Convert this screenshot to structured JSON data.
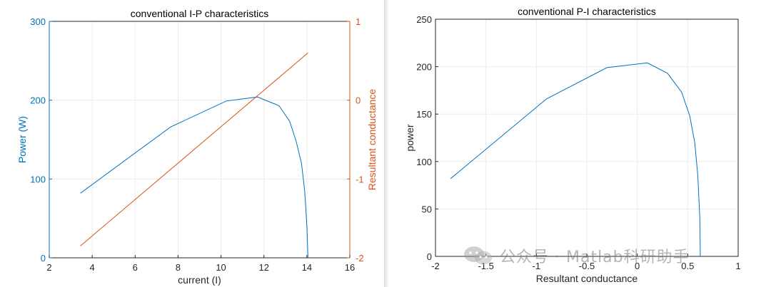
{
  "chart_data": [
    {
      "type": "line",
      "title": "conventional I-P characteristics",
      "xlabel": "current (I)",
      "ylabel": "Power (W)",
      "ylabel_right": "Resultant conductance",
      "xlim": [
        2,
        16
      ],
      "ylim": [
        0,
        300
      ],
      "ylim_right": [
        -2,
        1
      ],
      "xticks": [
        "2",
        "4",
        "6",
        "8",
        "10",
        "12",
        "14",
        "16"
      ],
      "yticks": [
        "0",
        "100",
        "200",
        "300"
      ],
      "yticks_right": [
        "-2",
        "-1",
        "0",
        "1"
      ],
      "grid": true,
      "colors": {
        "left_axis": "#0072BD",
        "right_axis": "#D95319"
      },
      "series": [
        {
          "axis": "left",
          "color": "#0072BD",
          "x": [
            3.45,
            7.65,
            10.25,
            11.7,
            12.7,
            13.2,
            13.5,
            13.75,
            13.9,
            14.0,
            14.05
          ],
          "y": [
            82,
            166,
            199,
            204,
            193,
            173,
            148,
            120,
            85,
            40,
            0
          ]
        },
        {
          "axis": "right",
          "color": "#D95319",
          "x": [
            3.45,
            14.05
          ],
          "y": [
            -1.85,
            0.6
          ]
        }
      ]
    },
    {
      "type": "line",
      "title": "conventional P-I characteristics",
      "xlabel": "Resultant conductance",
      "ylabel": "power",
      "xlim": [
        -2,
        1
      ],
      "ylim": [
        0,
        250
      ],
      "xticks": [
        "-2",
        "-1.5",
        "-1",
        "-0.5",
        "0",
        "0.5",
        "1"
      ],
      "yticks": [
        "0",
        "50",
        "100",
        "150",
        "200",
        "250"
      ],
      "grid": true,
      "series": [
        {
          "color": "#0072BD",
          "x": [
            -1.85,
            -0.9,
            -0.3,
            0.1,
            0.3,
            0.44,
            0.52,
            0.57,
            0.6,
            0.62,
            0.625
          ],
          "y": [
            82,
            166,
            199,
            204,
            193,
            173,
            148,
            120,
            85,
            40,
            0
          ]
        }
      ]
    }
  ],
  "watermark": {
    "text": "公众号 · Matlab科研助手"
  }
}
